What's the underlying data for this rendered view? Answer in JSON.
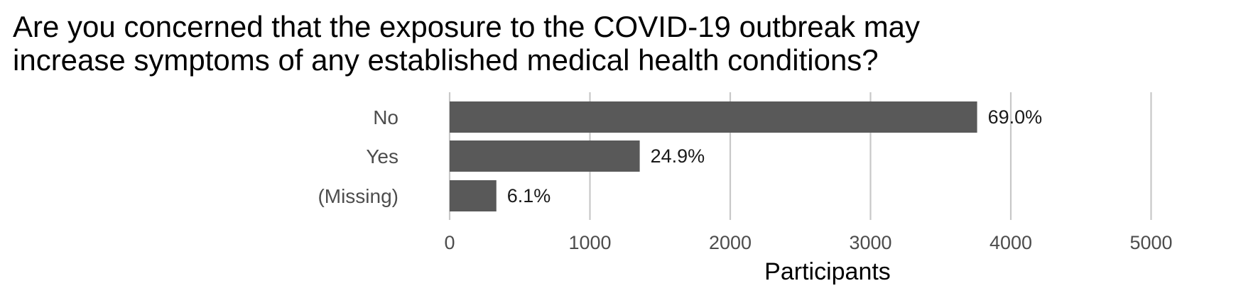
{
  "chart_data": {
    "type": "bar",
    "orientation": "horizontal",
    "title_lines": [
      "Are you concerned that the exposure to the COVID-19 outbreak may",
      "increase symptoms of any established medical health conditions?"
    ],
    "categories": [
      "No",
      "Yes",
      "(Missing)"
    ],
    "values": [
      3760,
      1355,
      333
    ],
    "data_labels": [
      "69.0%",
      "24.9%",
      "6.1%"
    ],
    "xlabel": "Participants",
    "ylabel": "",
    "xlim": [
      0,
      5200
    ],
    "xticks": [
      0,
      1000,
      2000,
      3000,
      4000,
      5000
    ],
    "xtick_labels": [
      "0",
      "1000",
      "2000",
      "3000",
      "4000",
      "5000"
    ],
    "grid": "vertical major",
    "legend": "none",
    "colors": {
      "bar": "#595959",
      "grid": "#c8c8c8",
      "text": "#4d4d4d"
    }
  }
}
